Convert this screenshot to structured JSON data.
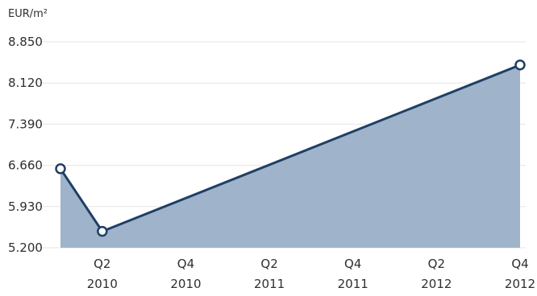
{
  "chart_data": {
    "type": "area",
    "ylabel": "EUR/m²",
    "xlabel": "",
    "x_ticks": [
      {
        "quarter": "Q2",
        "year": "2010"
      },
      {
        "quarter": "Q4",
        "year": "2010"
      },
      {
        "quarter": "Q2",
        "year": "2011"
      },
      {
        "quarter": "Q4",
        "year": "2011"
      },
      {
        "quarter": "Q2",
        "year": "2012"
      },
      {
        "quarter": "Q4",
        "year": "2012"
      }
    ],
    "y_ticks": [
      "8.850",
      "8.120",
      "7.390",
      "6.660",
      "5.930",
      "5.200"
    ],
    "ylim": [
      5200,
      8850
    ],
    "grid": true,
    "series": [
      {
        "points": [
          {
            "x": "2010-Q1",
            "y": 6600
          },
          {
            "x": "2010-Q2",
            "y": 5490
          },
          {
            "x": "2012-Q4",
            "y": 8440
          }
        ]
      }
    ],
    "colors": {
      "line": "#1f3f66",
      "fill": "#9fb3cb",
      "marker_fill": "#ffffff",
      "grid": "#e6e6e6",
      "text": "#2f2f2f"
    }
  }
}
